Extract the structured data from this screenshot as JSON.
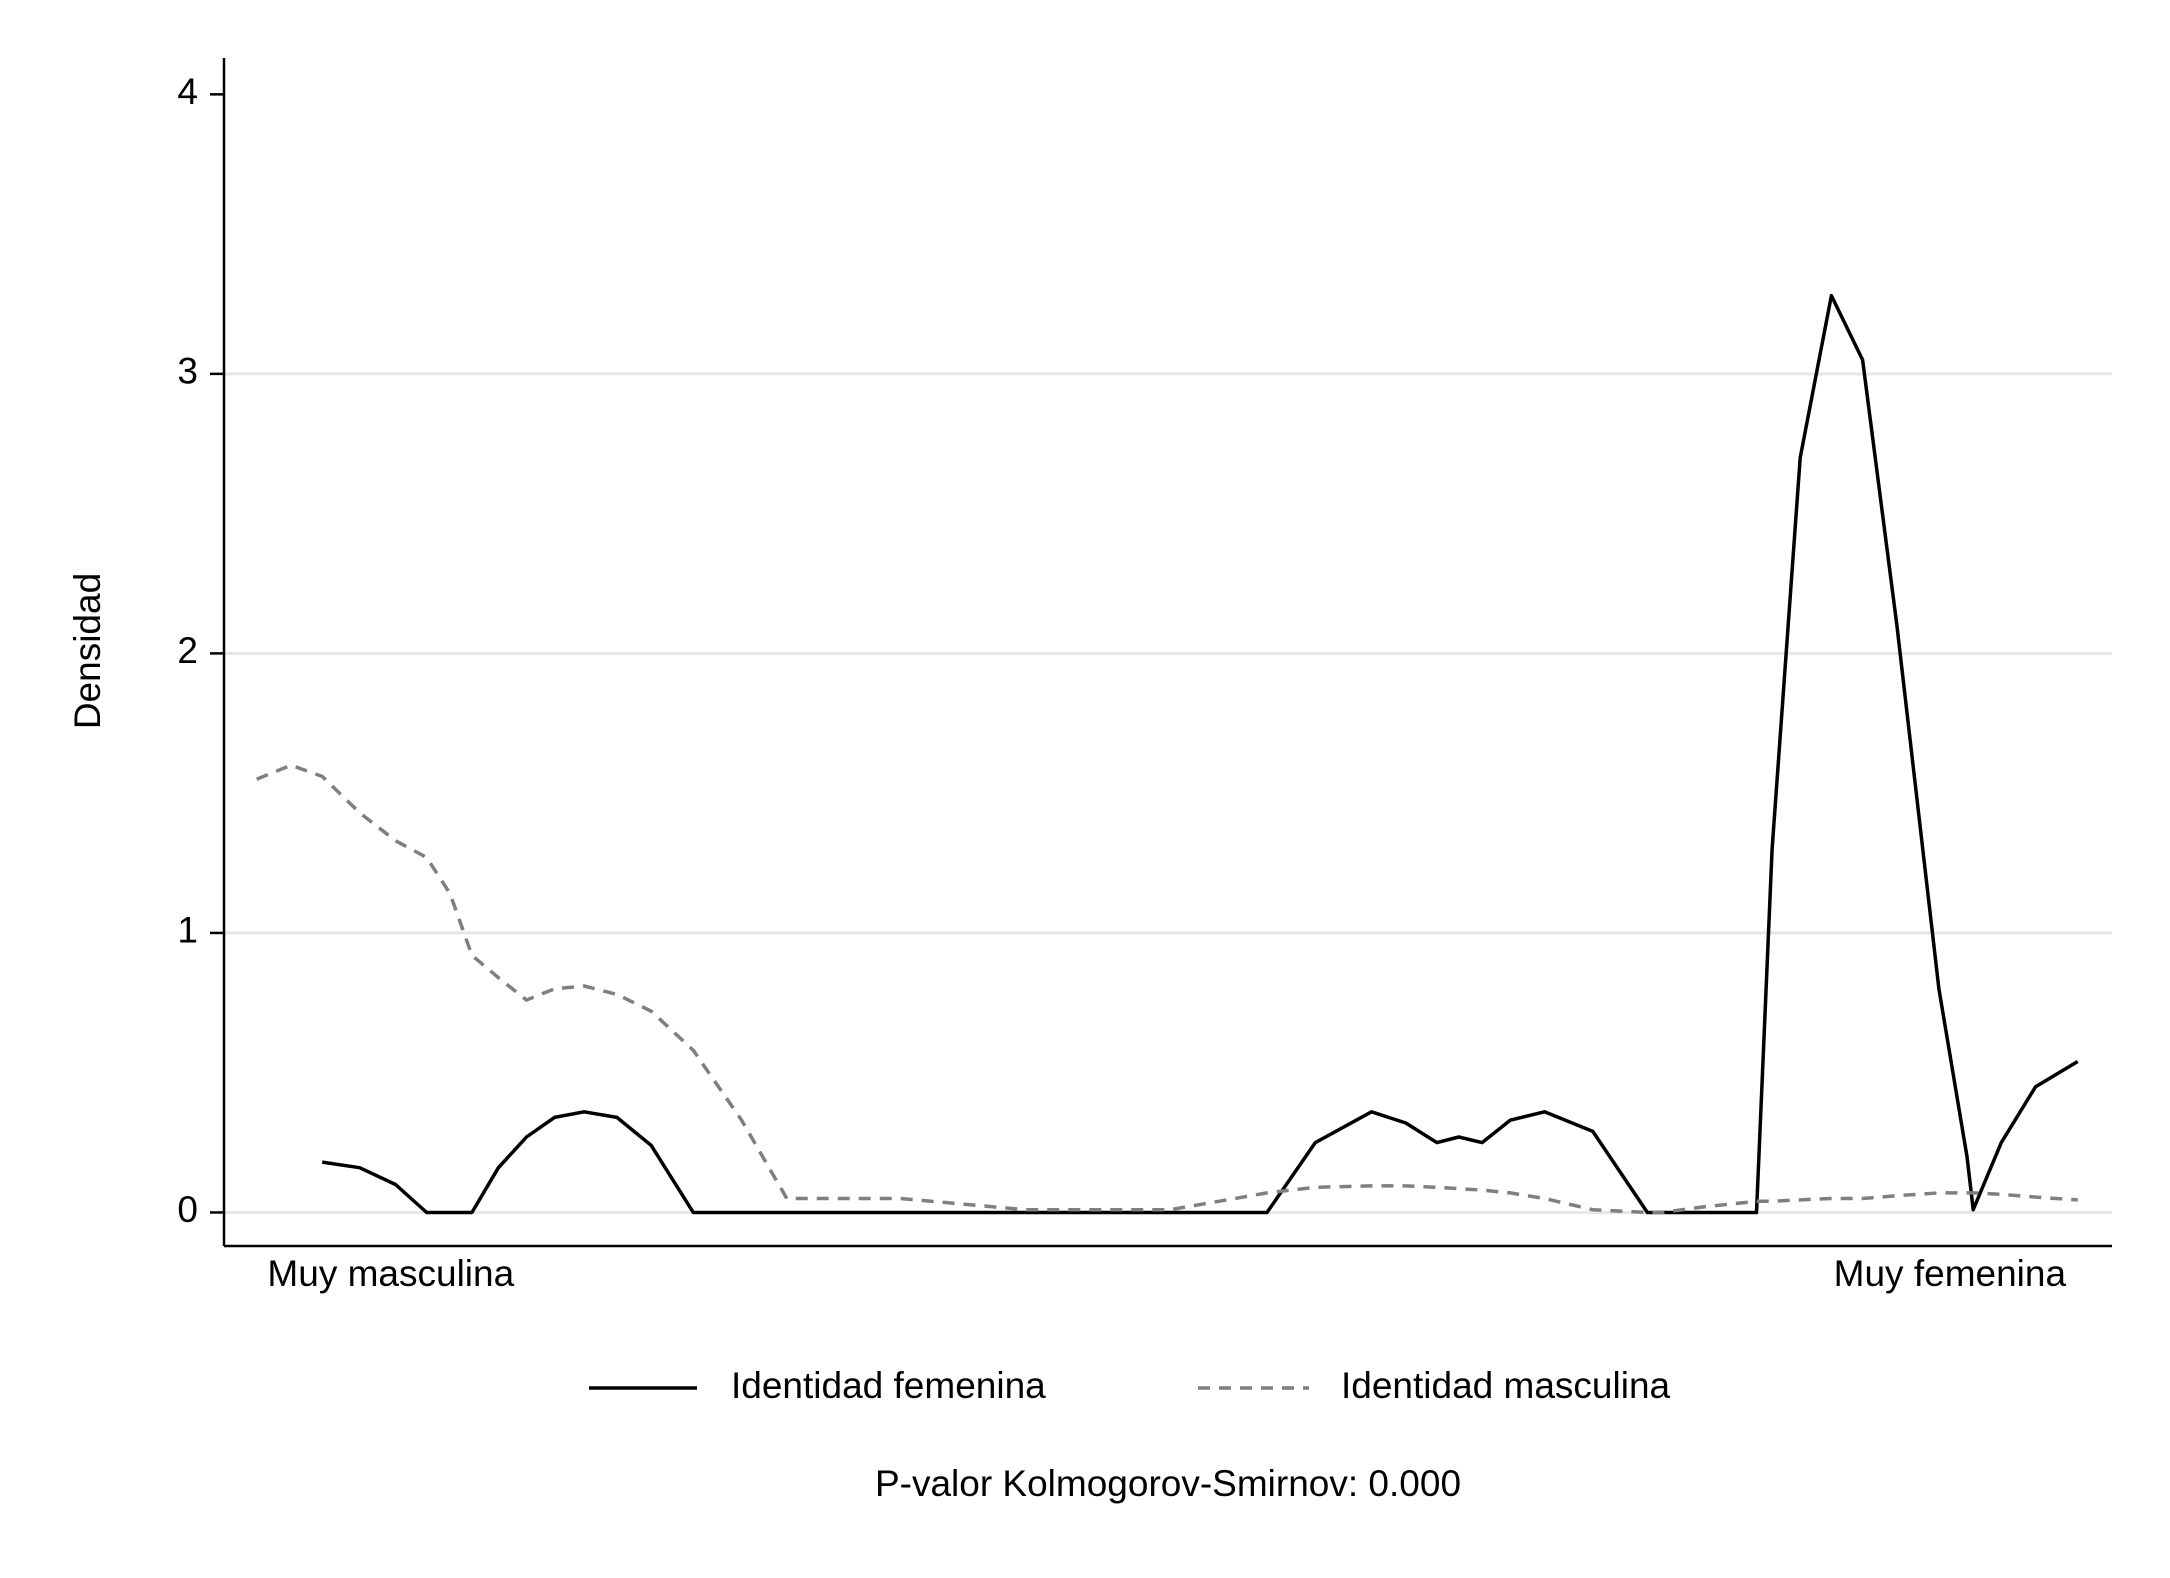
{
  "chart_data": {
    "type": "line",
    "y_label": "Densidad",
    "note": "P-valor Kolmogorov-Smirnov: 0.000",
    "x": [
      -8.6,
      -6.4,
      -4.4,
      -2.0,
      0.3,
      2.3,
      3.8,
      5.2,
      6.9,
      8.7,
      10.5,
      12.4,
      14.5,
      16.7,
      19.4,
      22.5,
      25.4,
      32.7,
      40.7,
      50.0,
      53.1,
      56.2,
      59.3,
      62.9,
      65.1,
      67.1,
      68.5,
      70.0,
      71.8,
      74.0,
      77.1,
      80.6,
      81.5,
      84.2,
      87.6,
      88.6,
      90.4,
      92.4,
      94.4,
      96.6,
      99.3,
      101.1,
      101.5,
      103.3,
      105.5,
      108.2
    ],
    "series": [
      {
        "name": "Identidad femenina",
        "color": "#000000",
        "dash": false,
        "values": [
          null,
          null,
          0.18,
          0.16,
          0.1,
          0,
          0,
          0,
          0.16,
          0.27,
          0.34,
          0.36,
          0.34,
          0.24,
          0,
          0,
          0,
          0,
          0,
          0,
          0,
          0,
          0.25,
          0.36,
          0.32,
          0.25,
          0.27,
          0.25,
          0.33,
          0.36,
          0.29,
          0,
          0,
          0,
          0,
          1.3,
          2.7,
          3.28,
          3.05,
          2.1,
          0.8,
          0.2,
          0.01,
          0.25,
          0.45,
          0.54
        ]
      },
      {
        "name": "Identidad masculina",
        "color": "#7f7f7f",
        "dash": true,
        "values": [
          1.55,
          1.6,
          1.56,
          1.43,
          1.33,
          1.27,
          1.14,
          0.92,
          0.84,
          0.76,
          0.8,
          0.81,
          0.78,
          0.72,
          0.58,
          0.33,
          0.05,
          0.05,
          0.01,
          0.01,
          0.04,
          0.07,
          0.09,
          0.095,
          0.095,
          0.09,
          0.085,
          0.08,
          0.07,
          0.05,
          0.01,
          0,
          0,
          0.02,
          0.04,
          0.04,
          0.045,
          0.05,
          0.05,
          0.06,
          0.07,
          0.07,
          0.07,
          0.065,
          0.055,
          0.045
        ]
      }
    ],
    "xlim": [
      -10.7,
      110.4
    ],
    "xticks": [
      {
        "value": 0,
        "label": "Muy masculina"
      },
      {
        "value": 100,
        "label": "Muy femenina"
      }
    ],
    "ylim": [
      -0.12,
      4.13
    ],
    "yticks": [
      0,
      1,
      2,
      3,
      4
    ],
    "grid": true
  }
}
